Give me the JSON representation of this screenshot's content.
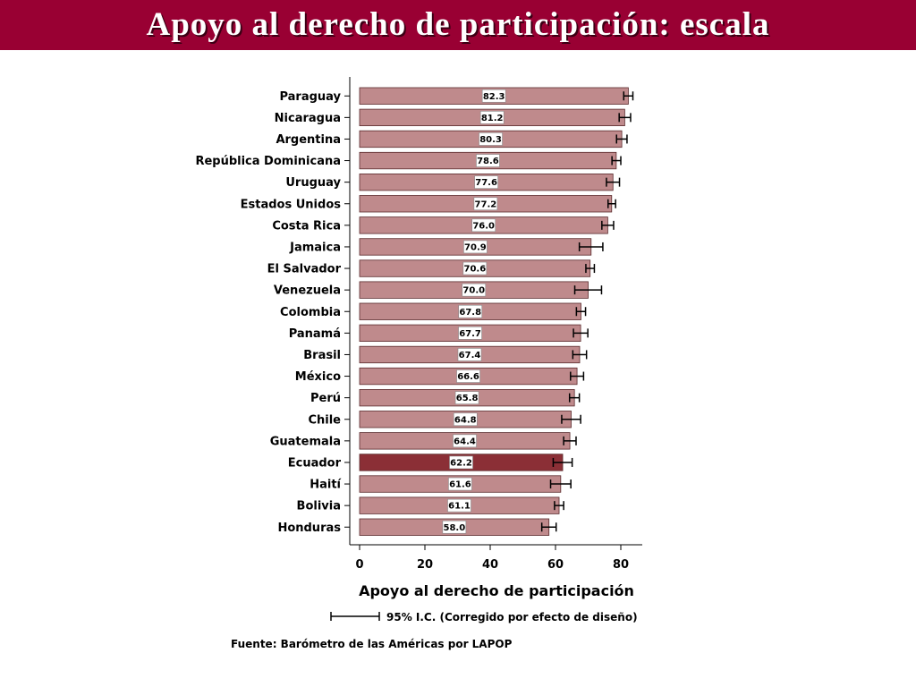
{
  "header": {
    "title": "Apoyo al derecho de participación: escala"
  },
  "colors": {
    "header_bg": "#990033",
    "bar": "#bf8a8c",
    "bar_highlight": "#8b2f36",
    "bar_edge": "#5a2a2c"
  },
  "chart_data": {
    "type": "bar",
    "orientation": "horizontal",
    "categories": [
      "Paraguay",
      "Nicaragua",
      "Argentina",
      "República Dominicana",
      "Uruguay",
      "Estados Unidos",
      "Costa Rica",
      "Jamaica",
      "El Salvador",
      "Venezuela",
      "Colombia",
      "Panamá",
      "Brasil",
      "México",
      "Perú",
      "Chile",
      "Guatemala",
      "Ecuador",
      "Haití",
      "Bolivia",
      "Honduras"
    ],
    "values": [
      82.3,
      81.2,
      80.3,
      78.6,
      77.6,
      77.2,
      76.0,
      70.9,
      70.6,
      70.0,
      67.8,
      67.7,
      67.4,
      66.6,
      65.8,
      64.8,
      64.4,
      62.2,
      61.6,
      61.1,
      58.0
    ],
    "value_labels": [
      "82.3",
      "81.2",
      "80.3",
      "78.6",
      "77.6",
      "77.2",
      "76.0",
      "70.9",
      "70.6",
      "70.0",
      "67.8",
      "67.7",
      "67.4",
      "66.6",
      "65.8",
      "64.8",
      "64.4",
      "62.2",
      "61.6",
      "61.1",
      "58.0"
    ],
    "ci_low": [
      80.9,
      79.5,
      78.7,
      77.3,
      75.6,
      76.1,
      74.2,
      67.3,
      69.3,
      65.9,
      66.4,
      65.5,
      65.3,
      64.6,
      64.3,
      61.9,
      62.5,
      59.3,
      58.5,
      59.7,
      55.8
    ],
    "ci_high": [
      83.7,
      83.0,
      81.9,
      80.0,
      79.6,
      78.4,
      77.8,
      74.5,
      71.9,
      74.1,
      69.2,
      69.9,
      69.5,
      68.6,
      67.3,
      67.7,
      66.3,
      65.1,
      64.7,
      62.5,
      60.2
    ],
    "highlight": "Ecuador",
    "xlabel": "Apoyo al derecho de participación",
    "ylabel": "",
    "xlim": [
      0,
      85
    ],
    "xticks": [
      0,
      20,
      40,
      60,
      80
    ],
    "legend": "95% I.C. (Corregido por efecto de diseño)",
    "source": "Fuente: Barómetro de las Américas por LAPOP"
  }
}
